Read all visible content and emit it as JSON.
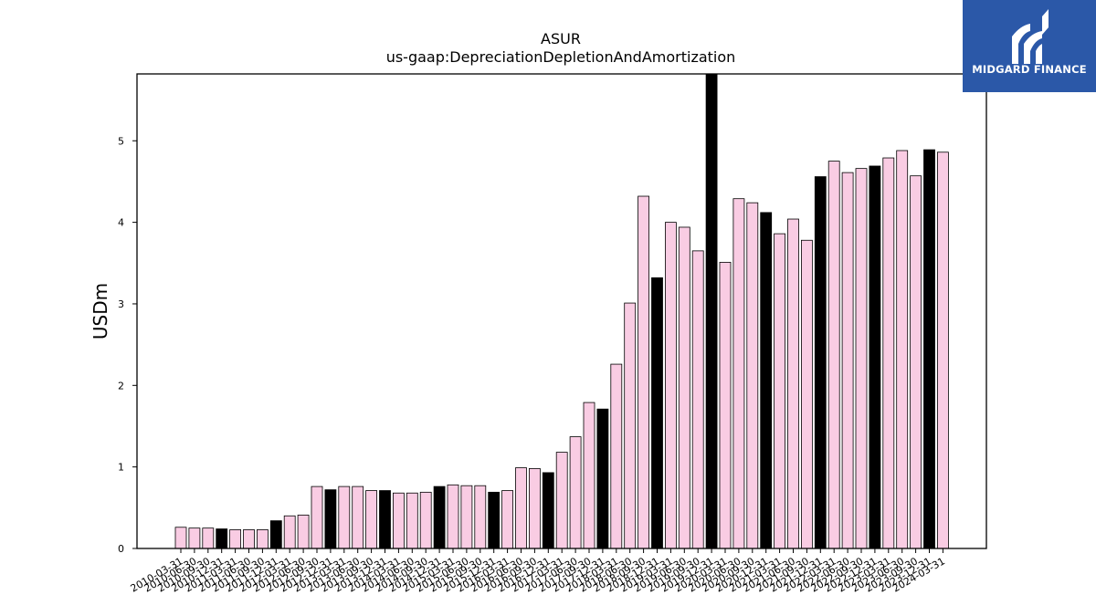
{
  "logo": {
    "text": "MIDGARD FINANCE",
    "icon": "midgard-logo-icon",
    "background": "#2b58a8"
  },
  "chart_data": {
    "type": "bar",
    "title": "ASUR",
    "subtitle": "us-gaap:DepreciationDepletionAndAmortization",
    "xlabel": "",
    "ylabel": "USDm",
    "ylim": [
      0,
      5.82
    ],
    "yticks": [
      0,
      1,
      2,
      3,
      4,
      5
    ],
    "colors": {
      "quarter": "#f9cce3",
      "year_end": "#000000",
      "edge": "#000000"
    },
    "categories": [
      "2010-03-31",
      "2010-06-30",
      "2010-09-30",
      "2010-12-31",
      "2011-03-31",
      "2011-06-30",
      "2011-09-30",
      "2011-12-31",
      "2012-03-31",
      "2012-06-30",
      "2012-09-30",
      "2012-12-31",
      "2013-03-31",
      "2013-06-30",
      "2013-09-30",
      "2013-12-31",
      "2014-03-31",
      "2014-06-30",
      "2014-09-30",
      "2014-12-31",
      "2015-03-31",
      "2015-06-30",
      "2015-09-30",
      "2015-12-31",
      "2016-03-31",
      "2016-06-30",
      "2016-09-30",
      "2016-12-31",
      "2017-03-31",
      "2017-06-30",
      "2017-09-30",
      "2017-12-31",
      "2018-03-31",
      "2018-06-30",
      "2018-09-30",
      "2018-12-31",
      "2019-03-31",
      "2019-06-30",
      "2019-09-30",
      "2019-12-31",
      "2020-03-31",
      "2020-06-30",
      "2020-09-30",
      "2020-12-31",
      "2021-03-31",
      "2021-06-30",
      "2021-09-30",
      "2021-12-31",
      "2022-03-31",
      "2022-06-30",
      "2022-09-30",
      "2022-12-31",
      "2023-03-31",
      "2023-06-30",
      "2023-09-30",
      "2023-12-31",
      "2024-03-31"
    ],
    "values": [
      0.26,
      0.25,
      0.25,
      0.24,
      0.23,
      0.23,
      0.23,
      0.34,
      0.4,
      0.41,
      0.76,
      0.72,
      0.76,
      0.76,
      0.71,
      0.71,
      0.68,
      0.68,
      0.69,
      0.76,
      0.78,
      0.77,
      0.77,
      0.69,
      0.71,
      0.99,
      0.98,
      0.93,
      1.18,
      1.37,
      1.79,
      1.71,
      2.26,
      3.01,
      4.32,
      3.32,
      4.0,
      3.94,
      3.65,
      5.82,
      3.51,
      4.29,
      4.24,
      4.12,
      3.86,
      4.04,
      3.78,
      4.56,
      4.75,
      4.61,
      4.66,
      4.69,
      4.79,
      4.88,
      4.57,
      4.89,
      4.86
    ],
    "year_end": [
      false,
      false,
      false,
      true,
      false,
      false,
      false,
      true,
      false,
      false,
      false,
      true,
      false,
      false,
      false,
      true,
      false,
      false,
      false,
      true,
      false,
      false,
      false,
      true,
      false,
      false,
      false,
      true,
      false,
      false,
      false,
      true,
      false,
      false,
      false,
      true,
      false,
      false,
      false,
      true,
      false,
      false,
      false,
      true,
      false,
      false,
      false,
      true,
      false,
      false,
      false,
      true,
      false,
      false,
      false,
      true,
      false
    ]
  }
}
